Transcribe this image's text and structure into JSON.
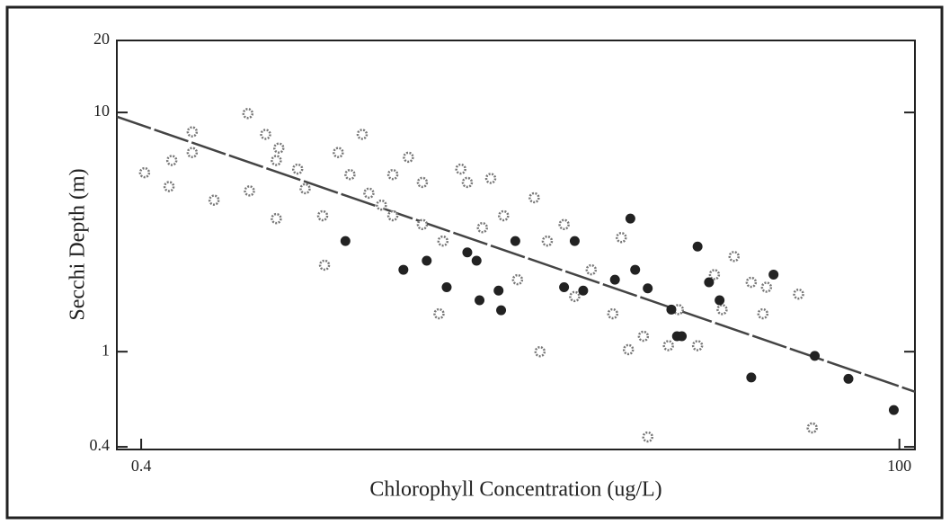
{
  "chart_data": {
    "type": "scatter",
    "x_label": "Chlorophyll Concentration (ug/L)",
    "y_label": "Secchi Depth (m)",
    "x_log": true,
    "y_log": true,
    "xlim": [
      0.335,
      112
    ],
    "ylim": [
      0.39,
      20
    ],
    "xticks": [
      0.4,
      100
    ],
    "yticks": [
      0.4,
      1,
      10,
      20
    ],
    "series": [
      {
        "color": "#777777",
        "marker": "open",
        "x": [
          0.41,
          0.5,
          0.49,
          0.58,
          0.58,
          0.68,
          0.87,
          0.88,
          0.99,
          1.07,
          1.09,
          1.25,
          1.32,
          1.5,
          1.52,
          1.68,
          1.83,
          2.0,
          2.1,
          2.3,
          2.5,
          2.8,
          3.1,
          3.5,
          3.6,
          4.1,
          4.3,
          4.8,
          5.1,
          5.6,
          6.2,
          7.0,
          7.3,
          7.7,
          8.7,
          9.4,
          10.6,
          12.4,
          13.2,
          13.9,
          15.5,
          16.0,
          18.6,
          20,
          23,
          26,
          27.5,
          30,
          34,
          37,
          38,
          48,
          53,
          2.5,
          3.1,
          1.07
        ],
        "values": [
          5.6,
          6.3,
          4.9,
          8.3,
          6.8,
          4.3,
          9.9,
          4.7,
          8.1,
          6.3,
          7.1,
          5.8,
          4.8,
          3.7,
          2.3,
          6.8,
          5.5,
          8.1,
          4.6,
          4.1,
          3.7,
          6.5,
          3.4,
          1.44,
          2.9,
          5.8,
          5.1,
          3.3,
          5.3,
          3.7,
          2.0,
          4.4,
          1.0,
          2.9,
          3.4,
          1.7,
          2.2,
          1.44,
          3.0,
          1.02,
          1.16,
          0.44,
          1.06,
          1.5,
          1.06,
          2.1,
          1.5,
          2.5,
          1.95,
          1.44,
          1.86,
          1.74,
          0.48,
          5.5,
          5.1,
          3.6
        ]
      },
      {
        "color": "#222222",
        "marker": "filled",
        "x": [
          1.77,
          2.7,
          3.2,
          3.7,
          4.6,
          4.7,
          5.4,
          5.5,
          6.1,
          9.4,
          10.0,
          12.6,
          14.1,
          14.6,
          16,
          19,
          19.8,
          20.5,
          23,
          25,
          27,
          40,
          34,
          54,
          69,
          96,
          8.7,
          4.3
        ],
        "values": [
          2.9,
          2.2,
          2.4,
          1.86,
          2.4,
          1.64,
          1.8,
          1.49,
          2.9,
          2.9,
          1.8,
          2.0,
          3.6,
          2.2,
          1.84,
          1.5,
          1.16,
          1.16,
          2.75,
          1.95,
          1.64,
          2.1,
          0.78,
          0.96,
          0.77,
          0.57,
          1.86,
          2.6
        ]
      }
    ],
    "trend": {
      "color": "#444444",
      "x": [
        0.335,
        112
      ],
      "values": [
        9.6,
        0.68
      ]
    }
  }
}
